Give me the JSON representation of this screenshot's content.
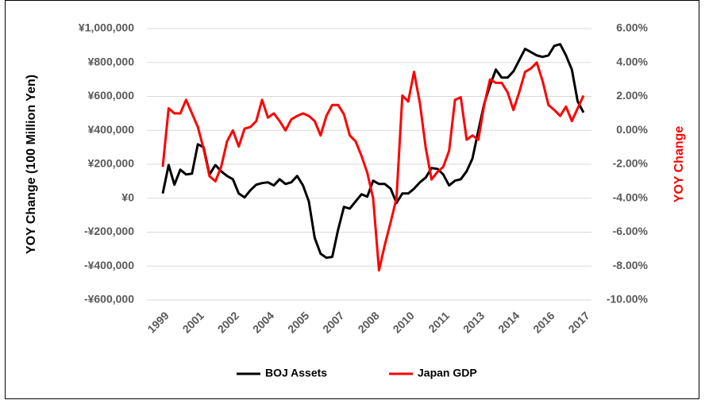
{
  "chart_data": {
    "type": "line",
    "y_label": "YOY Change (100 Million Yen)",
    "y2_label": "YOY Change",
    "categories": [
      "1999",
      null,
      null,
      null,
      null,
      null,
      "2001",
      null,
      null,
      null,
      null,
      null,
      "2002",
      null,
      null,
      null,
      null,
      null,
      "2004",
      null,
      null,
      null,
      null,
      null,
      "2005",
      null,
      null,
      null,
      null,
      null,
      "2007",
      null,
      null,
      null,
      null,
      null,
      "2008",
      null,
      null,
      null,
      null,
      null,
      "2010",
      null,
      null,
      null,
      null,
      null,
      "2011",
      null,
      null,
      null,
      null,
      null,
      "2013",
      null,
      null,
      null,
      null,
      null,
      "2014",
      null,
      null,
      null,
      null,
      null,
      "2016",
      null,
      null,
      null,
      null,
      null,
      "2017"
    ],
    "series": [
      {
        "name": "BOJ Assets",
        "color": "#000000",
        "values": [
          28000,
          196000,
          80000,
          168000,
          140000,
          145000,
          318000,
          300000,
          140000,
          196000,
          159000,
          131000,
          112000,
          28000,
          5000,
          47000,
          80000,
          89000,
          94000,
          75000,
          112000,
          84000,
          94000,
          131000,
          75000,
          -19000,
          -234000,
          -327000,
          -351000,
          -346000,
          -187000,
          -51000,
          -61000,
          -19000,
          23000,
          9000,
          103000,
          84000,
          84000,
          56000,
          -28000,
          28000,
          28000,
          56000,
          94000,
          122000,
          178000,
          173000,
          140000,
          75000,
          103000,
          112000,
          159000,
          234000,
          398000,
          557000,
          664000,
          758000,
          711000,
          711000,
          748000,
          814000,
          880000,
          861000,
          842000,
          833000,
          842000,
          898000,
          908000,
          842000,
          758000,
          571000,
          505000
        ]
      },
      {
        "name": "Japan GDP",
        "color": "#ff0000",
        "axis": "y2",
        "values": [
          -2.15,
          1.3,
          1.0,
          1.0,
          1.8,
          1.0,
          0.2,
          -1.1,
          -2.7,
          -3.0,
          -2.15,
          -0.65,
          0,
          -0.95,
          0.1,
          0.2,
          0.55,
          1.8,
          0.75,
          1.0,
          0.55,
          0,
          0.65,
          0.85,
          1.0,
          0.85,
          0.55,
          -0.3,
          0.85,
          1.5,
          1.5,
          0.95,
          -0.3,
          -0.65,
          -1.5,
          -2.5,
          -4.0,
          -8.25,
          -6.75,
          -5.4,
          -4.0,
          2.05,
          1.7,
          3.45,
          1.6,
          -1.05,
          -2.9,
          -2.45,
          -2.15,
          -1.2,
          1.8,
          1.95,
          -0.55,
          -0.3,
          -0.55,
          1.5,
          3.0,
          2.8,
          2.8,
          2.25,
          1.2,
          2.25,
          3.45,
          3.65,
          4.0,
          2.9,
          1.5,
          1.2,
          0.85,
          1.4,
          0.55,
          1.3,
          2.05
        ]
      }
    ],
    "ylim": [
      -600000,
      1000000
    ],
    "yticks": [
      {
        "value": -600000,
        "label": "-¥600,000"
      },
      {
        "value": -400000,
        "label": "-¥400,000"
      },
      {
        "value": -200000,
        "label": "-¥200,000"
      },
      {
        "value": 0,
        "label": "¥0"
      },
      {
        "value": 200000,
        "label": "¥200,000"
      },
      {
        "value": 400000,
        "label": "¥400,000"
      },
      {
        "value": 600000,
        "label": "¥600,000"
      },
      {
        "value": 800000,
        "label": "¥800,000"
      },
      {
        "value": 1000000,
        "label": "¥1,000,000"
      }
    ],
    "y2lim": [
      -10,
      6
    ],
    "y2ticks": [
      {
        "value": -10,
        "label": "-10.00%"
      },
      {
        "value": -8,
        "label": "-8.00%"
      },
      {
        "value": -6,
        "label": "-6.00%"
      },
      {
        "value": -4,
        "label": "-4.00%"
      },
      {
        "value": -2,
        "label": "-2.00%"
      },
      {
        "value": 0,
        "label": "0.00%"
      },
      {
        "value": 2,
        "label": "2.00%"
      },
      {
        "value": 4,
        "label": "4.00%"
      },
      {
        "value": 6,
        "label": "6.00%"
      }
    ],
    "y2_color": "#ff0000",
    "grid": true,
    "legend": "bottom"
  }
}
